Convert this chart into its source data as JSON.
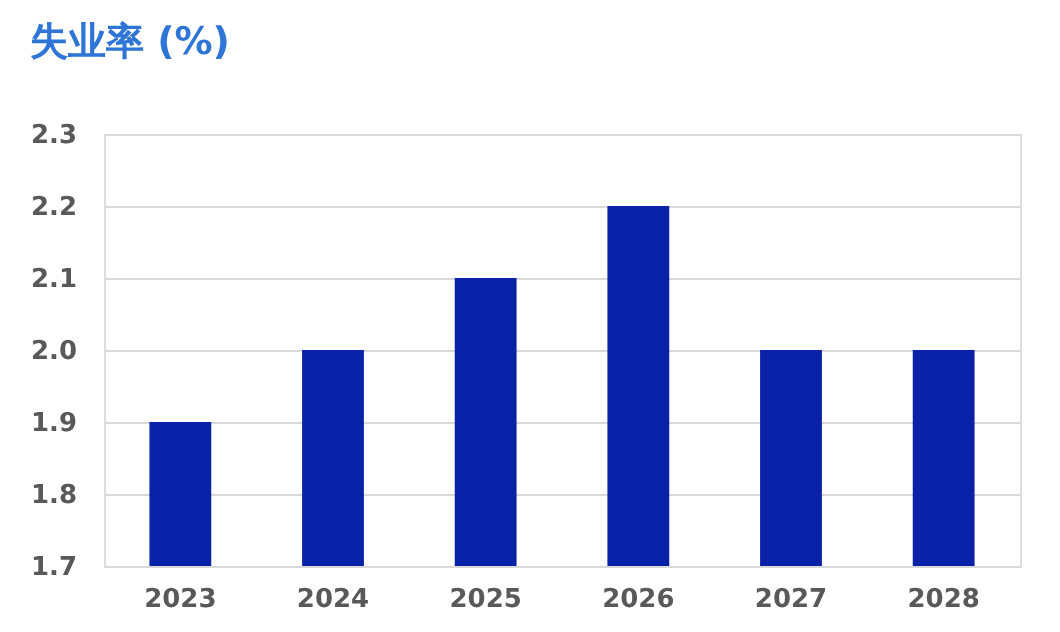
{
  "chart_data": {
    "type": "bar",
    "title": "失业率 (%)",
    "categories": [
      "2023",
      "2024",
      "2025",
      "2026",
      "2027",
      "2028"
    ],
    "values": [
      1.9,
      2.0,
      2.1,
      2.2,
      2.0,
      2.0
    ],
    "color": "#0a22a8",
    "ylim": [
      1.7,
      2.3
    ],
    "yticks": [
      1.7,
      1.8,
      1.9,
      {
        "value": 2.0,
        "label": "2.0"
      },
      2.1,
      2.2,
      2.3
    ],
    "grid": "y"
  }
}
